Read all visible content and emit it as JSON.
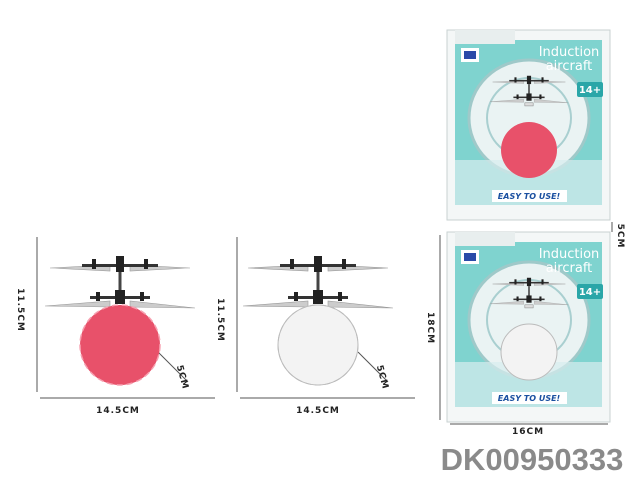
{
  "products": [
    {
      "height": "11.5CM",
      "width": "14.5CM",
      "depth": "5CM"
    },
    {
      "height": "11.5CM",
      "width": "14.5CM",
      "depth": "5CM"
    }
  ],
  "package": {
    "brand_line1": "Induction",
    "brand_line2": "aircraft",
    "age": "14+",
    "slogan": "EASY TO USE!",
    "height": "18CM",
    "width": "16CM",
    "depth": "5CM"
  },
  "item_code": "DK00950333"
}
